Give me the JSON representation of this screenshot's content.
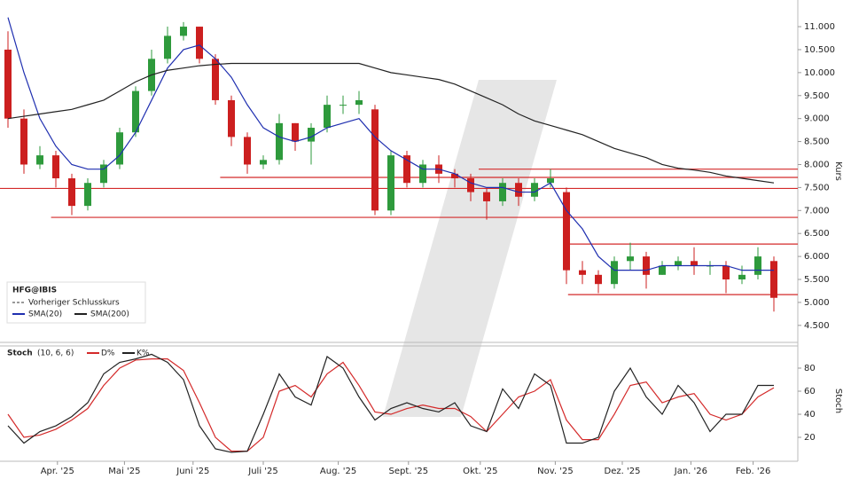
{
  "chart_data": [
    {
      "type": "candlestick",
      "axis_label": "Kurs",
      "xlim": [
        -0.5,
        49.5
      ],
      "ylim": [
        4.13,
        11.58
      ],
      "yticks": [
        {
          "value": 4.5,
          "label": "4.500"
        },
        {
          "value": 5,
          "label": "5.000"
        },
        {
          "value": 5.5,
          "label": "5.500"
        },
        {
          "value": 6,
          "label": "6.000"
        },
        {
          "value": 6.5,
          "label": "6.500"
        },
        {
          "value": 7,
          "label": "7.000"
        },
        {
          "value": 7.5,
          "label": "7.500"
        },
        {
          "value": 8,
          "label": "8.000"
        },
        {
          "value": 8.5,
          "label": "8.500"
        },
        {
          "value": 9,
          "label": "9.000"
        },
        {
          "value": 9.5,
          "label": "9.500"
        },
        {
          "value": 10,
          "label": "10.000"
        },
        {
          "value": 10.5,
          "label": "10.500"
        },
        {
          "value": 11,
          "label": "11.000"
        }
      ],
      "up_color": "#2e9a3c",
      "down_color": "#cc1f1f",
      "legend": {
        "symbol": "HFG@IBIS",
        "previous_close": "Vorheriger Schlusskurs"
      },
      "open": [
        10.5,
        9.0,
        8.0,
        8.2,
        7.7,
        7.1,
        7.6,
        8.0,
        8.7,
        9.6,
        10.3,
        10.8,
        11.0,
        10.3,
        9.4,
        8.6,
        8.0,
        8.1,
        8.9,
        8.5,
        8.8,
        9.3,
        9.3,
        9.2,
        7.0,
        8.2,
        7.6,
        8.0,
        7.8,
        7.7,
        7.4,
        7.2,
        7.6,
        7.3,
        7.6,
        7.4,
        5.7,
        5.6,
        5.4,
        5.9,
        6.0,
        5.6,
        5.8,
        5.9,
        5.8,
        5.8,
        5.5,
        5.6,
        5.9
      ],
      "high": [
        10.9,
        9.2,
        8.4,
        8.3,
        7.8,
        7.7,
        8.1,
        8.8,
        9.7,
        10.5,
        11.0,
        11.1,
        11.0,
        10.4,
        9.5,
        8.7,
        8.2,
        9.1,
        8.9,
        8.9,
        9.5,
        9.5,
        9.6,
        9.3,
        8.3,
        8.3,
        8.1,
        8.2,
        7.9,
        7.8,
        7.5,
        7.7,
        7.7,
        7.7,
        7.9,
        7.5,
        5.9,
        5.7,
        6.0,
        6.3,
        6.1,
        5.9,
        6.0,
        6.2,
        5.9,
        5.9,
        5.8,
        6.2,
        6.0
      ],
      "low": [
        8.8,
        7.8,
        7.9,
        7.5,
        6.9,
        7.0,
        7.5,
        7.9,
        8.6,
        9.5,
        10.2,
        10.7,
        10.2,
        9.3,
        8.4,
        7.8,
        7.9,
        8.0,
        8.3,
        8.0,
        8.7,
        9.1,
        9.1,
        6.9,
        6.9,
        7.5,
        7.5,
        7.6,
        7.5,
        7.2,
        6.8,
        7.1,
        7.1,
        7.2,
        7.5,
        5.4,
        5.4,
        5.2,
        5.3,
        5.7,
        5.3,
        5.6,
        5.7,
        5.6,
        5.6,
        5.2,
        5.4,
        5.5,
        4.8
      ],
      "close": [
        9.0,
        8.0,
        8.2,
        7.7,
        7.1,
        7.6,
        8.0,
        8.7,
        9.6,
        10.3,
        10.8,
        11.0,
        10.3,
        9.4,
        8.6,
        8.0,
        8.1,
        8.9,
        8.5,
        8.8,
        9.3,
        9.3,
        9.4,
        7.0,
        8.2,
        7.6,
        8.0,
        7.8,
        7.7,
        7.4,
        7.2,
        7.6,
        7.3,
        7.6,
        7.7,
        5.7,
        5.6,
        5.4,
        5.9,
        6.0,
        5.6,
        5.8,
        5.9,
        5.8,
        5.8,
        5.5,
        5.6,
        6.0,
        5.1
      ],
      "series": [
        {
          "name": "SMA(20)",
          "color": "#1f2fb0",
          "values": [
            11.2,
            10.0,
            9.0,
            8.4,
            8.0,
            7.9,
            7.9,
            8.2,
            8.7,
            9.4,
            10.1,
            10.5,
            10.6,
            10.3,
            9.9,
            9.3,
            8.8,
            8.6,
            8.5,
            8.6,
            8.8,
            8.9,
            9.0,
            8.6,
            8.3,
            8.1,
            7.9,
            7.9,
            7.8,
            7.6,
            7.5,
            7.5,
            7.4,
            7.4,
            7.6,
            7.0,
            6.6,
            6.0,
            5.7,
            5.7,
            5.7,
            5.8,
            5.8,
            5.8,
            5.8,
            5.8,
            5.7,
            5.7,
            5.7
          ]
        },
        {
          "name": "SMA(200)",
          "color": "#222222",
          "values": [
            9.0,
            9.05,
            9.1,
            9.15,
            9.2,
            9.3,
            9.4,
            9.6,
            9.8,
            9.95,
            10.05,
            10.1,
            10.15,
            10.18,
            10.2,
            10.2,
            10.2,
            10.2,
            10.2,
            10.2,
            10.2,
            10.2,
            10.2,
            10.1,
            10.0,
            9.95,
            9.9,
            9.85,
            9.75,
            9.6,
            9.45,
            9.3,
            9.1,
            8.95,
            8.85,
            8.75,
            8.65,
            8.5,
            8.35,
            8.25,
            8.15,
            8.0,
            7.92,
            7.88,
            7.83,
            7.75,
            7.7,
            7.65,
            7.6
          ]
        }
      ],
      "levels": [
        {
          "value": 7.9,
          "from": 29.5
        },
        {
          "value": 7.72,
          "from": 13.3
        },
        {
          "value": 7.48,
          "from": -0.5
        },
        {
          "value": 6.85,
          "from": 2.7
        },
        {
          "value": 6.27,
          "from": 35.1
        },
        {
          "value": 5.17,
          "from": 35.1
        }
      ],
      "level_color": "#d42a2a"
    },
    {
      "type": "line",
      "title": "Stoch",
      "subtitle": "(10, 6, 6)",
      "axis_label": "Stoch",
      "xlim": [
        -0.5,
        49.5
      ],
      "ylim": [
        5.4,
        97.7
      ],
      "yticks": [
        20,
        40,
        60,
        80
      ],
      "xticks": [
        {
          "value": 3.1,
          "label": "Apr. '25"
        },
        {
          "value": 7.3,
          "label": "Mai '25"
        },
        {
          "value": 11.6,
          "label": "Juni '25"
        },
        {
          "value": 16.0,
          "label": "Juli '25"
        },
        {
          "value": 20.7,
          "label": "Aug. '25"
        },
        {
          "value": 25.1,
          "label": "Sept. '25"
        },
        {
          "value": 29.6,
          "label": "Okt. '25"
        },
        {
          "value": 34.3,
          "label": "Nov. '25"
        },
        {
          "value": 38.5,
          "label": "Dez. '25"
        },
        {
          "value": 42.8,
          "label": "Jan. '26"
        },
        {
          "value": 46.7,
          "label": "Feb. '26"
        }
      ],
      "series": [
        {
          "name": "D%",
          "color": "#d42a2a",
          "values": [
            40,
            20,
            22,
            27,
            35,
            45,
            65,
            80,
            87,
            88,
            88,
            78,
            50,
            20,
            8,
            8,
            20,
            60,
            65,
            55,
            75,
            85,
            65,
            42,
            40,
            45,
            48,
            45,
            45,
            38,
            25,
            40,
            55,
            60,
            70,
            35,
            18,
            18,
            40,
            65,
            68,
            50,
            55,
            58,
            40,
            35,
            40,
            55,
            63
          ]
        },
        {
          "name": "K%",
          "color": "#222222",
          "values": [
            30,
            15,
            25,
            30,
            38,
            50,
            75,
            85,
            88,
            92,
            85,
            70,
            30,
            10,
            7,
            8,
            40,
            75,
            55,
            48,
            90,
            80,
            55,
            35,
            45,
            50,
            45,
            42,
            50,
            30,
            25,
            62,
            45,
            75,
            65,
            15,
            15,
            20,
            60,
            80,
            55,
            40,
            65,
            50,
            25,
            40,
            40,
            65,
            65
          ]
        }
      ]
    }
  ]
}
